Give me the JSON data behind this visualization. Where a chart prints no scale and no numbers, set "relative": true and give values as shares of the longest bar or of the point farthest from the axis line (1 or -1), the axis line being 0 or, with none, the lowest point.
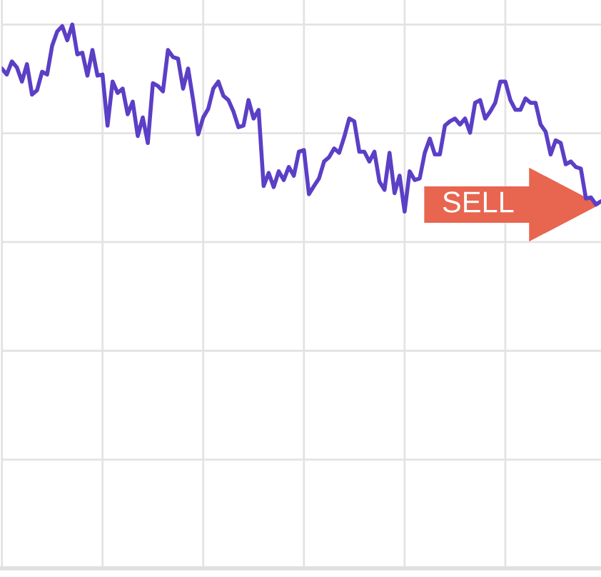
{
  "chart_data": {
    "type": "line",
    "relative": true,
    "grid": true,
    "tick_labels": false,
    "legend": false,
    "marker": "none",
    "line_style": "solid",
    "categories": [
      null,
      null,
      null,
      null,
      null,
      null,
      null,
      null,
      null,
      null,
      null,
      null,
      null,
      null,
      null,
      null,
      null,
      null,
      null,
      null,
      null,
      null,
      null,
      null,
      null,
      null,
      null,
      null,
      null,
      null,
      null,
      null,
      null,
      null,
      null,
      null,
      null,
      null,
      null,
      null,
      null,
      null,
      null,
      null,
      null,
      null,
      null,
      null,
      null,
      null,
      null,
      null,
      null,
      null,
      null,
      null,
      null,
      null,
      null,
      null,
      null,
      null,
      null,
      null,
      null,
      null,
      null,
      null,
      null,
      null,
      null,
      null,
      null,
      null,
      null,
      null,
      null,
      null,
      null,
      null,
      null,
      null,
      null,
      null,
      null,
      null,
      null,
      null,
      null,
      null,
      null,
      null,
      null,
      null,
      null,
      null,
      null,
      null,
      null,
      null,
      null,
      null,
      null,
      null,
      null,
      null,
      null,
      null,
      null,
      null,
      null,
      null,
      null,
      null,
      null,
      null,
      null,
      null,
      null,
      null
    ],
    "series": [
      {
        "color": "#5b3fc6",
        "values": [
          0.919,
          0.908,
          0.932,
          0.921,
          0.895,
          0.927,
          0.871,
          0.879,
          0.913,
          0.908,
          0.961,
          0.987,
          0.997,
          0.971,
          1.0,
          0.945,
          0.948,
          0.906,
          0.953,
          0.906,
          0.908,
          0.814,
          0.895,
          0.874,
          0.882,
          0.835,
          0.858,
          0.795,
          0.829,
          0.782,
          0.892,
          0.887,
          0.877,
          0.953,
          0.94,
          0.937,
          0.882,
          0.919,
          0.861,
          0.798,
          0.829,
          0.845,
          0.882,
          0.895,
          0.869,
          0.861,
          0.84,
          0.811,
          0.814,
          0.861,
          0.827,
          0.843,
          0.703,
          0.727,
          0.701,
          0.73,
          0.714,
          0.738,
          0.722,
          0.766,
          0.769,
          0.688,
          0.703,
          0.717,
          0.748,
          0.756,
          0.772,
          0.764,
          0.793,
          0.827,
          0.822,
          0.766,
          0.766,
          0.748,
          0.766,
          0.711,
          0.696,
          0.764,
          0.69,
          0.722,
          0.656,
          0.73,
          0.714,
          0.717,
          0.764,
          0.79,
          0.761,
          0.761,
          0.814,
          0.822,
          0.827,
          0.816,
          0.827,
          0.801,
          0.856,
          0.861,
          0.827,
          0.84,
          0.856,
          0.895,
          0.895,
          0.861,
          0.843,
          0.843,
          0.864,
          0.856,
          0.856,
          0.816,
          0.803,
          0.761,
          0.787,
          0.782,
          0.743,
          0.748,
          0.738,
          0.735,
          0.68,
          0.682,
          0.669,
          0.675
        ]
      }
    ],
    "annotations": [
      "SELL"
    ]
  }
}
